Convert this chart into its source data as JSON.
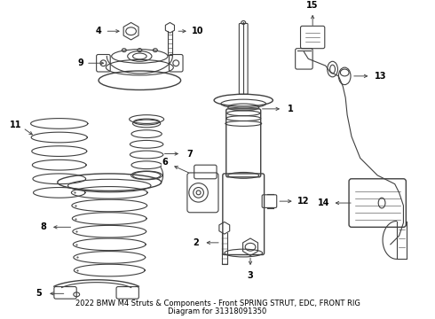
{
  "bg_color": "#ffffff",
  "line_color": "#404040",
  "title_line1": "2022 BMW M4 Struts & Components - Front SPRING STRUT, EDC, FRONT RIG",
  "title_line2": "Diagram for 31318091350",
  "title_fontsize": 6.0,
  "figsize": [
    4.9,
    3.6
  ],
  "dpi": 100
}
